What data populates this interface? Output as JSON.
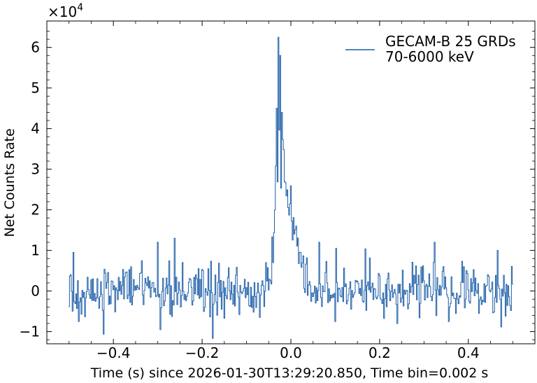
{
  "chart_data": {
    "type": "line",
    "xlabel": "Time (s) since 2026-01-30T13:29:20.850, Time bin=0.002 s",
    "ylabel": "Net Counts Rate",
    "y_multiplier_label": "×10",
    "y_multiplier_exponent": "4",
    "xlim": [
      -0.55,
      0.55
    ],
    "ylim": [
      -1.3,
      6.65
    ],
    "y_scale": 10000,
    "x_ticks": [
      -0.4,
      -0.2,
      0.0,
      0.2,
      0.4
    ],
    "x_tick_labels": [
      "−0.4",
      "−0.2",
      "0.0",
      "0.2",
      "0.4"
    ],
    "y_ticks": [
      -1,
      0,
      1,
      2,
      3,
      4,
      5,
      6
    ],
    "y_tick_labels": [
      "−1",
      "0",
      "1",
      "2",
      "3",
      "4",
      "5",
      "6"
    ],
    "grid": false,
    "legend_position": "top-right",
    "series_color": "#1f5fa8",
    "x_start": -0.5,
    "x_end": 0.5,
    "bin_width": 0.002,
    "series": [
      {
        "name": "GECAM-B 25 GRDs\n70-6000 keV",
        "legend_lines": [
          "GECAM-B 25 GRDs",
          "70-6000 keV"
        ],
        "profile": [
          {
            "x": -0.5,
            "mean": 0.0,
            "noise": 0.3
          },
          {
            "x": -0.06,
            "mean": 0.0,
            "noise": 0.3
          },
          {
            "x": -0.045,
            "mean": 0.2,
            "noise": 0.3
          },
          {
            "x": -0.038,
            "mean": 1.2,
            "noise": 0.35
          },
          {
            "x": -0.034,
            "mean": 3.0,
            "noise": 0.45
          },
          {
            "x": -0.03,
            "mean": 3.8,
            "noise": 0.55
          },
          {
            "x": -0.025,
            "mean": 4.0,
            "noise": 0.55
          },
          {
            "x": -0.022,
            "mean": 3.4,
            "noise": 0.55
          },
          {
            "x": -0.015,
            "mean": 3.0,
            "noise": 0.5
          },
          {
            "x": -0.008,
            "mean": 2.6,
            "noise": 0.45
          },
          {
            "x": 0.0,
            "mean": 2.2,
            "noise": 0.4
          },
          {
            "x": 0.01,
            "mean": 1.4,
            "noise": 0.35
          },
          {
            "x": 0.025,
            "mean": 0.6,
            "noise": 0.3
          },
          {
            "x": 0.04,
            "mean": 0.2,
            "noise": 0.3
          },
          {
            "x": 0.06,
            "mean": 0.0,
            "noise": 0.3
          },
          {
            "x": 0.5,
            "mean": 0.0,
            "noise": 0.3
          }
        ],
        "peaks": [
          {
            "x": -0.028,
            "value": 6.25
          },
          {
            "x": -0.024,
            "value": 5.8
          },
          {
            "x": -0.032,
            "value": 4.5
          },
          {
            "x": -0.02,
            "value": 4.4
          },
          {
            "x": -0.49,
            "value": 0.95
          },
          {
            "x": -0.3,
            "value": 1.2
          },
          {
            "x": -0.262,
            "value": 1.3
          },
          {
            "x": 0.065,
            "value": 1.2
          },
          {
            "x": 0.325,
            "value": 1.2
          },
          {
            "x": 0.465,
            "value": 1.0
          },
          {
            "x": -0.295,
            "value": -0.95
          },
          {
            "x": 0.24,
            "value": -0.8
          },
          {
            "x": -0.478,
            "value": -0.75
          },
          {
            "x": 0.355,
            "value": -0.75
          },
          {
            "x": -0.07,
            "value": -0.65
          },
          {
            "x": 0.1,
            "value": -0.75
          }
        ]
      }
    ]
  }
}
